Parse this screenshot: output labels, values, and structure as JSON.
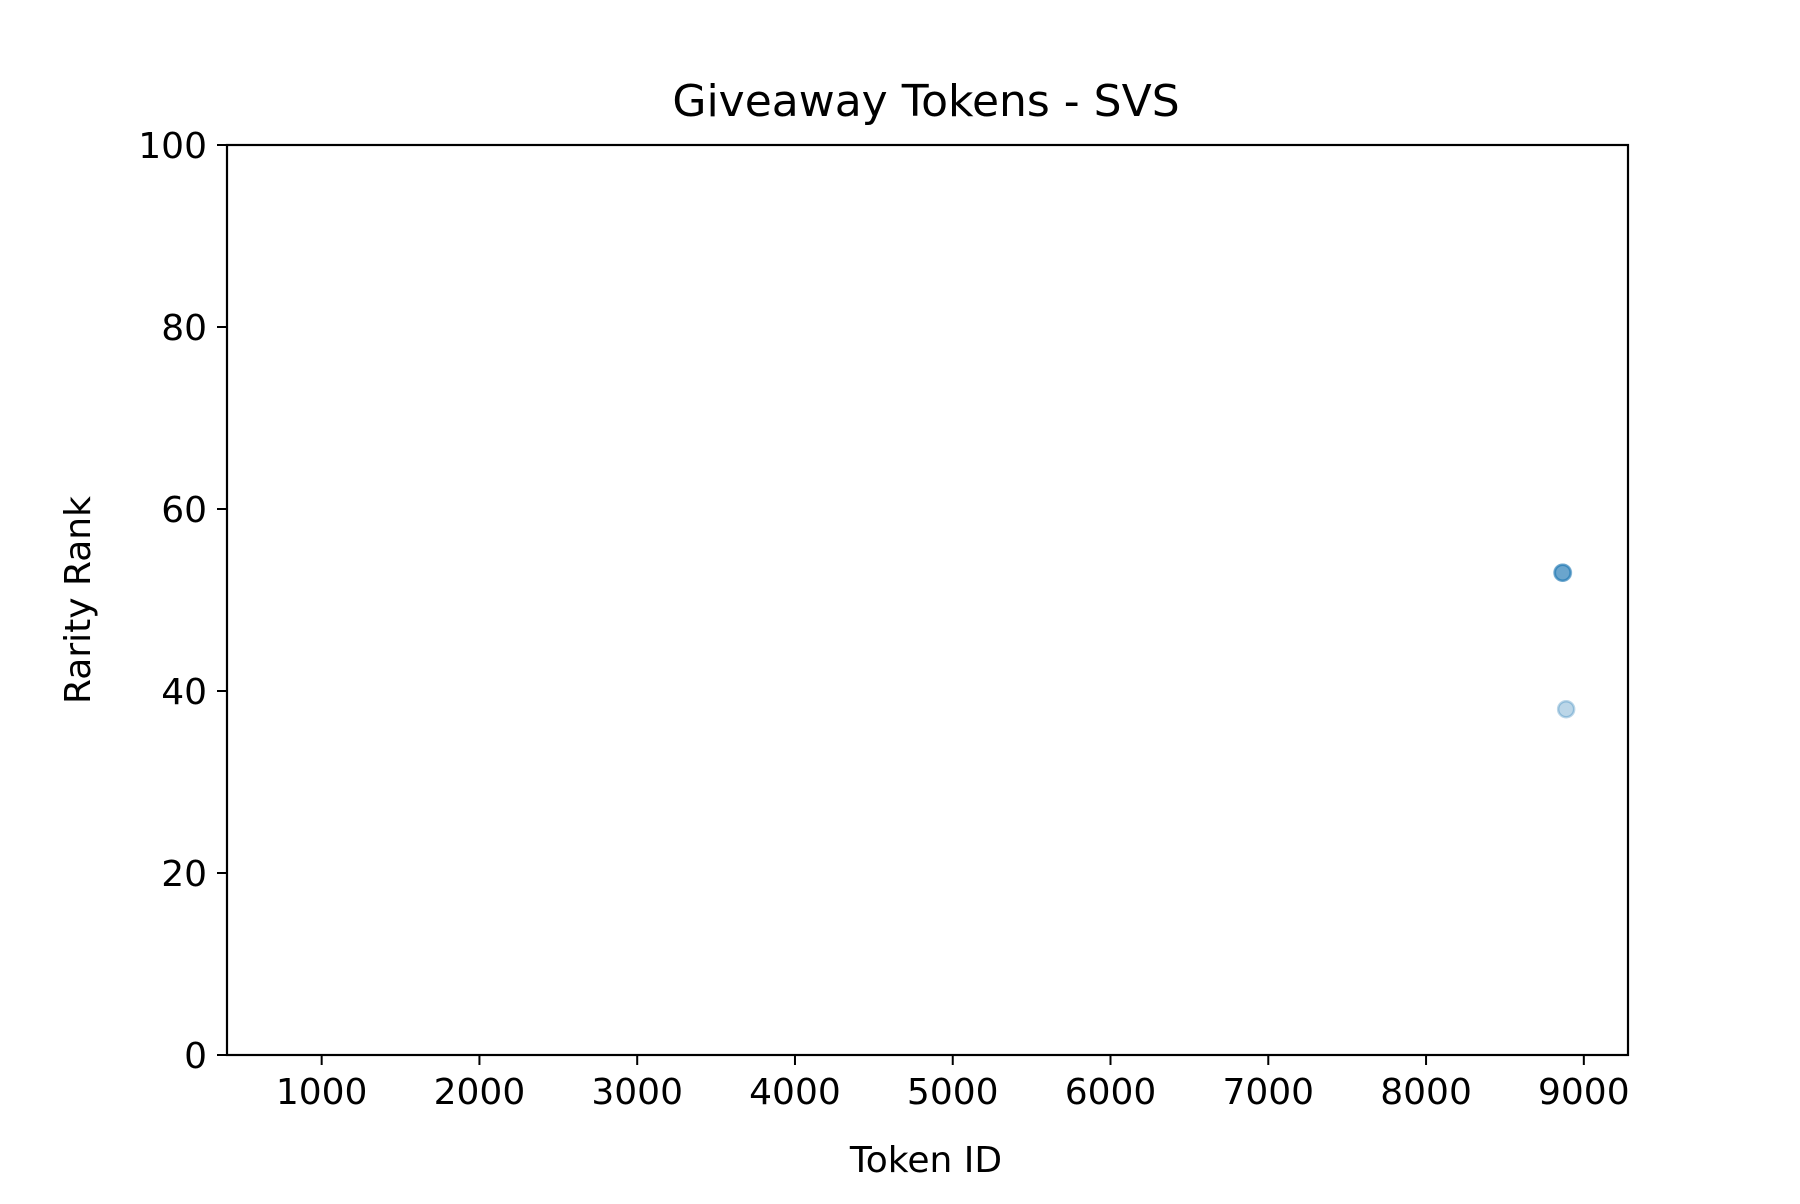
{
  "chart_data": {
    "type": "scatter",
    "title": "Giveaway Tokens - SVS",
    "xlabel": "Token ID",
    "ylabel": "Rarity Rank",
    "xlim": [
      400,
      9280
    ],
    "ylim": [
      0,
      100
    ],
    "xticks": [
      1000,
      2000,
      3000,
      4000,
      5000,
      6000,
      7000,
      8000,
      9000
    ],
    "yticks": [
      0,
      20,
      40,
      60,
      80,
      100
    ],
    "grid": false,
    "marker_color": "#1f77b4",
    "marker_alpha": 0.3,
    "points": [
      {
        "x": 8864,
        "y": 53
      },
      {
        "x": 8866,
        "y": 53
      },
      {
        "x": 8868,
        "y": 53
      },
      {
        "x": 8888,
        "y": 38
      }
    ]
  }
}
